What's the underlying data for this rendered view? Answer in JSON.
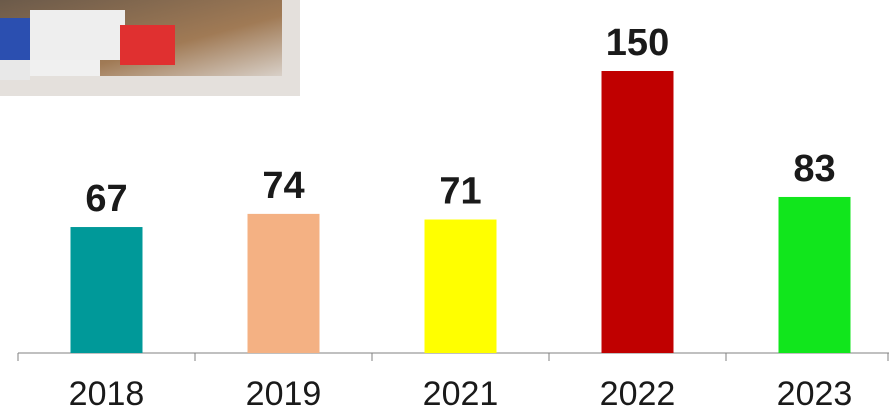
{
  "chart_data": {
    "type": "bar",
    "categories": [
      "2018",
      "2019",
      "2021",
      "2022",
      "2023"
    ],
    "values": [
      67,
      74,
      71,
      150,
      83
    ],
    "colors": [
      "#009999",
      "#f4b183",
      "#ffff00",
      "#c00000",
      "#11e61c"
    ]
  }
}
